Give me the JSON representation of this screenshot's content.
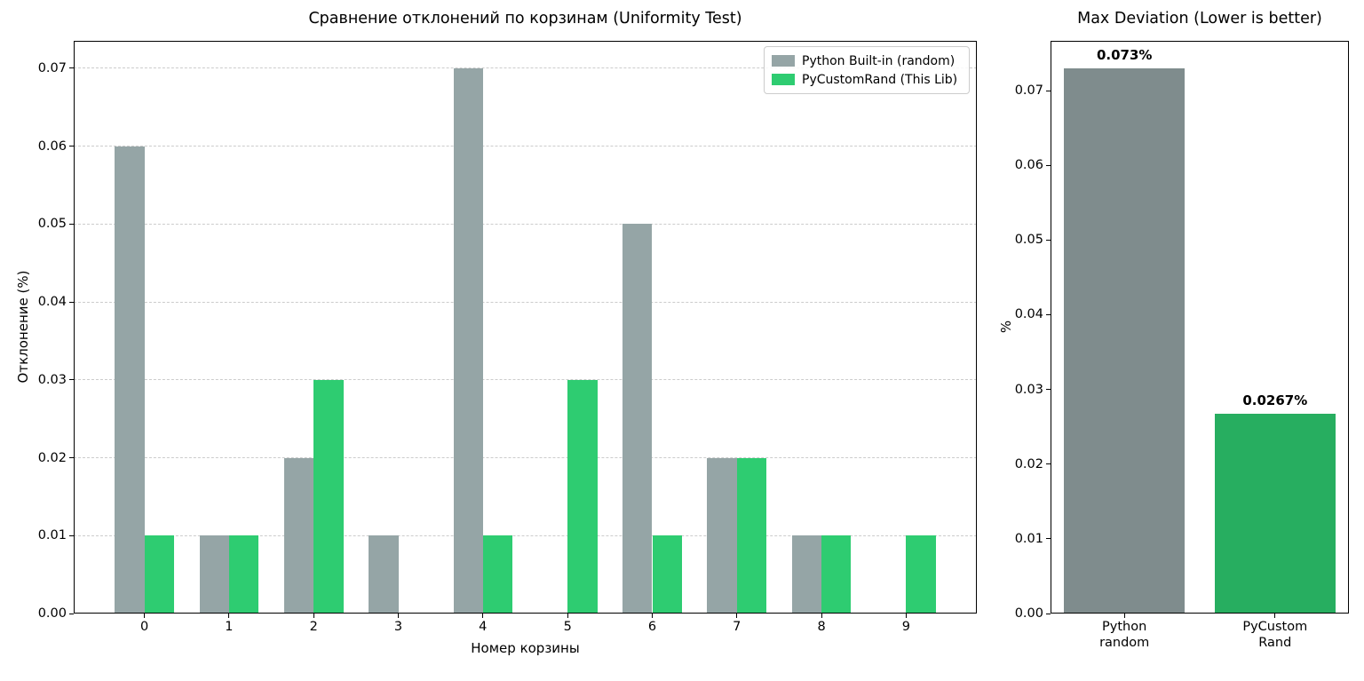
{
  "figure": {
    "background": "#ffffff",
    "text_color": "#000000",
    "spine_color": "#000000"
  },
  "chart_data": [
    {
      "type": "bar",
      "title": "Сравнение отклонений по корзинам (Uniformity Test)",
      "xlabel": "Номер корзины",
      "ylabel": "Отклонение (%)",
      "categories": [
        "0",
        "1",
        "2",
        "3",
        "4",
        "5",
        "6",
        "7",
        "8",
        "9"
      ],
      "series": [
        {
          "name": "Python Built-in (random)",
          "color": "#95a5a6",
          "values": [
            0.06,
            0.01,
            0.02,
            0.01,
            0.07,
            0.0,
            0.05,
            0.02,
            0.01,
            0.0
          ]
        },
        {
          "name": "PyCustomRand (This Lib)",
          "color": "#2ecc71",
          "values": [
            0.01,
            0.01,
            0.03,
            0.0,
            0.01,
            0.03,
            0.01,
            0.02,
            0.01,
            0.01
          ]
        }
      ],
      "bar_width": 0.35,
      "xlim": [
        -0.835,
        9.835
      ],
      "ylim": [
        0,
        0.0735
      ],
      "yticks": {
        "values": [
          0,
          0.01,
          0.02,
          0.03,
          0.04,
          0.05,
          0.06,
          0.07
        ],
        "labels": [
          "0.00",
          "0.01",
          "0.02",
          "0.03",
          "0.04",
          "0.05",
          "0.06",
          "0.07"
        ]
      },
      "grid": true,
      "grid_color": "#cccccc",
      "legend": {
        "position": "upper right"
      }
    },
    {
      "type": "bar",
      "title": "Max Deviation (Lower is better)",
      "xlabel": "",
      "ylabel": "%",
      "categories": [
        [
          "Python",
          "random"
        ],
        [
          "PyCustom",
          "Rand"
        ]
      ],
      "series": [
        {
          "colors": [
            "#7f8c8d",
            "#27ae60"
          ],
          "values": [
            0.073,
            0.0267
          ],
          "value_labels": [
            "0.073%",
            "0.0267%"
          ]
        }
      ],
      "bar_width": 0.8,
      "xlim": [
        -0.49,
        1.49
      ],
      "ylim": [
        0,
        0.07665
      ],
      "yticks": {
        "values": [
          0,
          0.01,
          0.02,
          0.03,
          0.04,
          0.05,
          0.06,
          0.07
        ],
        "labels": [
          "0.00",
          "0.01",
          "0.02",
          "0.03",
          "0.04",
          "0.05",
          "0.06",
          "0.07"
        ]
      },
      "grid": false,
      "grid_color": "#cccccc",
      "legend": null
    }
  ]
}
